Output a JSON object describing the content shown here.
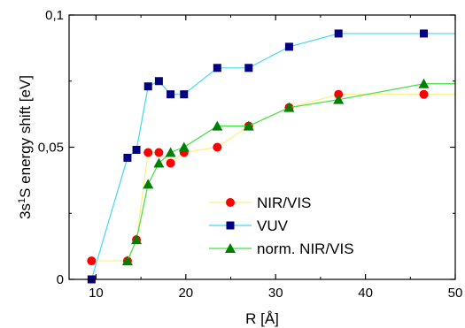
{
  "chart_data": {
    "type": "scatter",
    "xlabel": "R [Å]",
    "ylabel_parts": {
      "pre": "3s",
      "sup": "1",
      "post": "S energy shift [eV]"
    },
    "xlim": [
      7,
      50
    ],
    "ylim": [
      0,
      0.1
    ],
    "x_ticks": [
      10,
      20,
      30,
      40,
      50
    ],
    "x_tick_labels": [
      "10",
      "20",
      "30",
      "40",
      "50"
    ],
    "y_ticks": [
      0,
      0.05,
      0.1
    ],
    "y_tick_labels": [
      "0",
      "0,05",
      "0,1"
    ],
    "grid": false,
    "legend_position": "lower-right",
    "series": [
      {
        "name": "NIR/VIS",
        "marker": "circle",
        "marker_color": "#ff0000",
        "line_color": "#ffef80",
        "x": [
          9.5,
          13.5,
          14.5,
          15.8,
          17.0,
          18.3,
          19.8,
          23.5,
          27.0,
          31.5,
          37.0,
          46.5
        ],
        "y": [
          0.007,
          0.007,
          0.015,
          0.048,
          0.048,
          0.044,
          0.048,
          0.05,
          0.058,
          0.065,
          0.07,
          0.07
        ],
        "line_x": [
          9.5,
          13.5,
          14.5,
          15.8,
          17.0,
          18.3,
          19.8,
          23.5,
          27.0,
          31.5,
          37.0,
          46.5,
          50
        ],
        "line_y": [
          0.007,
          0.007,
          0.015,
          0.048,
          0.048,
          0.044,
          0.048,
          0.05,
          0.058,
          0.065,
          0.07,
          0.07,
          0.07
        ]
      },
      {
        "name": "VUV",
        "marker": "square",
        "marker_color": "#000080",
        "line_color": "#40d8f0",
        "x": [
          9.5,
          13.5,
          14.5,
          15.8,
          17.0,
          18.3,
          19.8,
          23.5,
          27.0,
          31.5,
          37.0,
          46.5
        ],
        "y": [
          0.0,
          0.046,
          0.049,
          0.073,
          0.075,
          0.07,
          0.07,
          0.08,
          0.08,
          0.088,
          0.093,
          0.093
        ],
        "line_x": [
          9.5,
          13.5,
          14.5,
          15.8,
          17.0,
          18.3,
          19.8,
          23.5,
          27.0,
          31.5,
          37.0,
          46.5,
          50
        ],
        "line_y": [
          0.0,
          0.046,
          0.049,
          0.073,
          0.075,
          0.07,
          0.07,
          0.08,
          0.08,
          0.088,
          0.093,
          0.093,
          0.093
        ]
      },
      {
        "name": "norm. NIR/VIS",
        "marker": "triangle",
        "marker_color": "#008000",
        "line_color": "#40e040",
        "x": [
          13.5,
          14.5,
          15.8,
          17.0,
          18.3,
          19.8,
          23.5,
          27.0,
          31.5,
          37.0,
          46.5
        ],
        "y": [
          0.007,
          0.015,
          0.036,
          0.044,
          0.048,
          0.05,
          0.058,
          0.058,
          0.065,
          0.068,
          0.074
        ],
        "line_x": [
          13.5,
          14.5,
          15.8,
          17.0,
          18.3,
          19.8,
          23.5,
          27.0,
          31.5,
          37.0,
          46.5,
          50
        ],
        "line_y": [
          0.007,
          0.015,
          0.036,
          0.044,
          0.048,
          0.05,
          0.058,
          0.058,
          0.065,
          0.068,
          0.074,
          0.074
        ]
      }
    ]
  }
}
